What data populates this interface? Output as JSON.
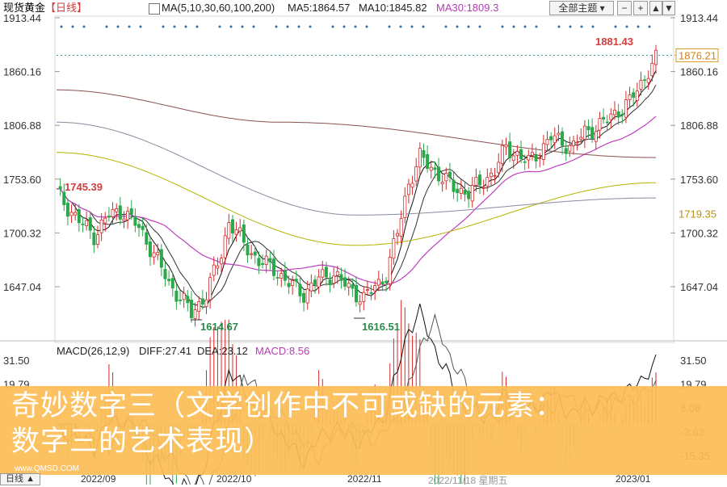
{
  "header": {
    "instrument": "现货黄金",
    "period": "【日线】",
    "ma_label": "MA(5,10,30,60,100,200)",
    "ma5": "MA5:1864.57",
    "ma10": "MA10:1845.82",
    "ma30": "MA30:1809.3",
    "theme_select": "全部主题",
    "colors": {
      "ma5": "#111111",
      "ma10": "#111111",
      "ma30": "#c13ec1",
      "ma60": "#b4b400",
      "ma100": "#8a8aa0",
      "ma200": "#8a5050",
      "up": "#d62a2a",
      "down": "#2aa84a"
    }
  },
  "price_axis": {
    "left_labels": [
      "1913.44",
      "1860.16",
      "1806.88",
      "1753.60",
      "1700.32",
      "1647.04"
    ],
    "right_labels": [
      "1913.44",
      "1860.16",
      "1806.88",
      "1753.60",
      "1700.32",
      "1647.04"
    ],
    "current_price": "1876.21",
    "marker_price": "1719.35"
  },
  "annotations": {
    "high": "1881.43",
    "open_level": "1745.39",
    "low1": "1614.67",
    "low2": "1616.51"
  },
  "macd": {
    "title": "MACD(26,12,9)",
    "diff": "DIFF:27.41",
    "dea": "DEA:23.12",
    "macd_val": "MACD:8.56",
    "left_labels": [
      "31.50",
      "19.79"
    ],
    "right_labels": [
      "31.50",
      "19.79",
      "8.08",
      "-3.63",
      "-15.35"
    ]
  },
  "x_axis": {
    "period_button": "日线",
    "labels": [
      "2022/09",
      "2022/10",
      "2022/11",
      "2022/11/18 星期五",
      "2023/01"
    ]
  },
  "overlay": {
    "line1": "奇妙数字三（文学创作中不可或缺的元素：",
    "line2": "数字三的艺术表现）",
    "watermark": "www.QMSD.COM"
  },
  "chart_data": {
    "type": "candlestick",
    "title": "现货黄金",
    "ylim": [
      1600,
      1925
    ],
    "x_tick_labels": [
      "2022/09",
      "2022/10",
      "2022/11",
      "2022/11/18 星期五",
      "2023/01"
    ],
    "price_ticks": [
      1913.44,
      1860.16,
      1806.88,
      1753.6,
      1700.32,
      1647.04
    ],
    "high": 1881.43,
    "low": 1614.67,
    "series": [
      {
        "name": "MA5",
        "last": 1864.57
      },
      {
        "name": "MA10",
        "last": 1845.82
      },
      {
        "name": "MA30",
        "last": 1809.3
      }
    ],
    "macd": {
      "diff": 27.41,
      "dea": 23.12,
      "macd": 8.56,
      "ticks": [
        31.5,
        19.79,
        8.08,
        -3.63,
        -15.35
      ]
    }
  }
}
